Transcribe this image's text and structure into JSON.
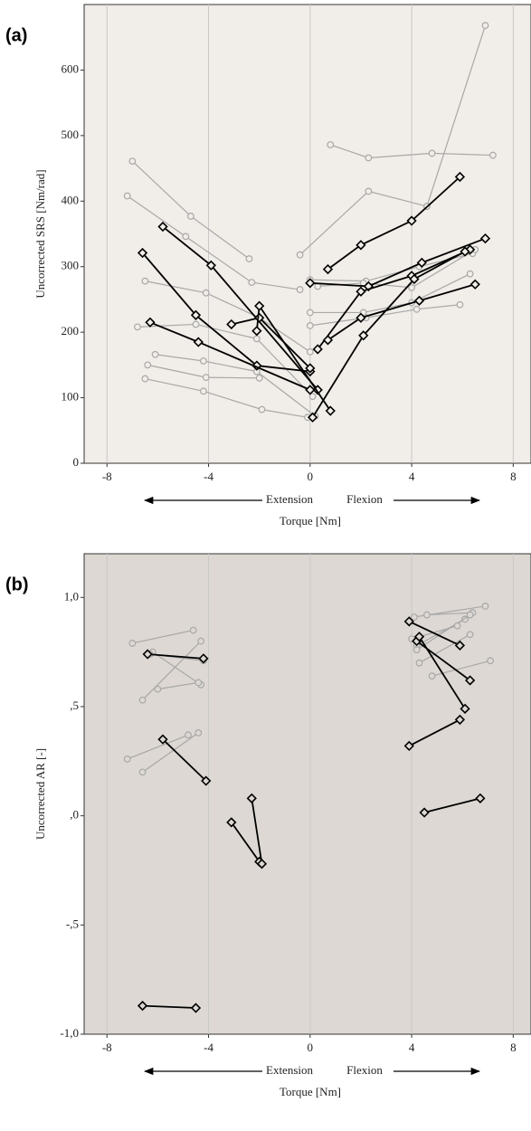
{
  "chart_data": [
    {
      "type": "line",
      "panel_label": "(a)",
      "xlabel": "Torque [Nm]",
      "ylabel": "Uncorrected SRS [Nm/rad]",
      "annotations": [
        "Extension",
        "Flexion"
      ],
      "background": "#f1ede8",
      "grid": "x",
      "xlim": [
        -8.9,
        8.7
      ],
      "xticks": [
        -8,
        -4,
        0,
        4,
        8
      ],
      "ylim": [
        0,
        700
      ],
      "yticks": [
        0,
        100,
        200,
        300,
        400,
        500,
        600
      ],
      "series": [
        {
          "color": "#a8a8a8",
          "marker": "circle",
          "x": [
            -7.0,
            -4.7,
            -2.4
          ],
          "values": [
            461,
            377,
            312
          ]
        },
        {
          "color": "#a8a8a8",
          "marker": "circle",
          "x": [
            -7.2,
            -4.9,
            -2.3,
            -0.4
          ],
          "values": [
            408,
            346,
            276,
            265
          ]
        },
        {
          "color": "#a8a8a8",
          "marker": "circle",
          "x": [
            -0.4,
            2.3,
            4.6
          ],
          "values": [
            318,
            415,
            392
          ]
        },
        {
          "color": "#a8a8a8",
          "marker": "circle",
          "x": [
            4.6,
            6.9
          ],
          "values": [
            392,
            668
          ]
        },
        {
          "color": "#a8a8a8",
          "marker": "circle",
          "x": [
            0.8,
            2.3,
            4.8,
            7.2
          ],
          "values": [
            486,
            466,
            473,
            470
          ]
        },
        {
          "color": "#a8a8a8",
          "marker": "circle",
          "x": [
            -6.5,
            -4.1,
            -2.0,
            0.0
          ],
          "values": [
            278,
            260,
            222,
            170
          ]
        },
        {
          "color": "#a8a8a8",
          "marker": "circle",
          "x": [
            -6.8,
            -4.5,
            -2.1,
            0.1
          ],
          "values": [
            208,
            212,
            190,
            102
          ]
        },
        {
          "color": "#a8a8a8",
          "marker": "circle",
          "x": [
            -6.1,
            -4.2,
            -2.1,
            0.2
          ],
          "values": [
            166,
            156,
            140,
            72
          ]
        },
        {
          "color": "#a8a8a8",
          "marker": "circle",
          "x": [
            -6.4,
            -4.1,
            -2.0
          ],
          "values": [
            150,
            131,
            130
          ]
        },
        {
          "color": "#a8a8a8",
          "marker": "circle",
          "x": [
            -6.5,
            -4.2,
            -1.9,
            -0.1
          ],
          "values": [
            129,
            110,
            82,
            70
          ]
        },
        {
          "color": "#a8a8a8",
          "marker": "circle",
          "x": [
            0.0,
            2.2,
            4.3,
            6.4
          ],
          "values": [
            280,
            278,
            300,
            320
          ]
        },
        {
          "color": "#a8a8a8",
          "marker": "circle",
          "x": [
            0.0,
            2.1,
            4.0,
            6.3
          ],
          "values": [
            230,
            230,
            245,
            289
          ]
        },
        {
          "color": "#a8a8a8",
          "marker": "circle",
          "x": [
            0.0,
            2.2,
            4.2,
            5.9
          ],
          "values": [
            210,
            222,
            235,
            242
          ]
        },
        {
          "color": "#a8a8a8",
          "marker": "circle",
          "x": [
            0.3,
            2.1,
            4.0,
            6.5
          ],
          "values": [
            270,
            275,
            268,
            326
          ]
        },
        {
          "color": "#000000",
          "marker": "diamond",
          "x": [
            -5.8,
            -3.9,
            0.3
          ],
          "values": [
            361,
            302,
            112
          ]
        },
        {
          "color": "#000000",
          "marker": "diamond",
          "x": [
            -6.6,
            -4.5,
            -2.1,
            0.0
          ],
          "values": [
            321,
            226,
            149,
            140
          ]
        },
        {
          "color": "#000000",
          "marker": "diamond",
          "x": [
            -6.3,
            -4.4,
            0.0
          ],
          "values": [
            215,
            185,
            112
          ]
        },
        {
          "color": "#000000",
          "marker": "diamond",
          "x": [
            -3.1,
            -2.0,
            0.0
          ],
          "values": [
            212,
            222,
            145
          ]
        },
        {
          "color": "#000000",
          "marker": "diamond",
          "x": [
            -2.1,
            -2.0,
            0.8
          ],
          "values": [
            202,
            240,
            80
          ]
        },
        {
          "color": "#000000",
          "marker": "diamond",
          "x": [
            0.7,
            2.0,
            4.0,
            5.9
          ],
          "values": [
            296,
            333,
            370,
            437
          ]
        },
        {
          "color": "#000000",
          "marker": "diamond",
          "x": [
            0.0,
            2.3,
            4.4,
            6.9
          ],
          "values": [
            275,
            270,
            306,
            343
          ]
        },
        {
          "color": "#000000",
          "marker": "diamond",
          "x": [
            0.3,
            2.0,
            4.0,
            6.3
          ],
          "values": [
            174,
            262,
            286,
            326
          ]
        },
        {
          "color": "#000000",
          "marker": "diamond",
          "x": [
            0.7,
            2.0,
            4.3,
            6.5
          ],
          "values": [
            188,
            222,
            248,
            273
          ]
        },
        {
          "color": "#000000",
          "marker": "diamond",
          "x": [
            0.1,
            2.1,
            4.1,
            6.1
          ],
          "values": [
            70,
            195,
            281,
            323
          ]
        }
      ]
    },
    {
      "type": "line",
      "panel_label": "(b)",
      "xlabel": "Torque [Nm]",
      "ylabel": "Uncorrected AR [-]",
      "annotations": [
        "Extension",
        "Flexion"
      ],
      "background": "#ddd8d3",
      "grid": "x",
      "xlim": [
        -8.9,
        8.7
      ],
      "xticks": [
        -8,
        -4,
        0,
        4,
        8
      ],
      "ylim": [
        -1.0,
        1.2
      ],
      "yticks": [
        {
          "value": 1.0,
          "label": "1,0"
        },
        {
          "value": 0.5,
          "label": ",5"
        },
        {
          "value": 0,
          "label": ",0"
        },
        {
          "value": -0.5,
          "label": "-,5"
        },
        {
          "value": -1.0,
          "label": "-1,0"
        }
      ],
      "series": [
        {
          "color": "#a8a8a8",
          "marker": "circle",
          "x": [
            -7.0,
            -4.6
          ],
          "values": [
            0.79,
            0.85
          ]
        },
        {
          "color": "#a8a8a8",
          "marker": "circle",
          "x": [
            -6.6,
            -4.3
          ],
          "values": [
            0.53,
            0.8
          ]
        },
        {
          "color": "#a8a8a8",
          "marker": "circle",
          "x": [
            -6.2,
            -4.3
          ],
          "values": [
            0.75,
            0.6
          ]
        },
        {
          "color": "#a8a8a8",
          "marker": "circle",
          "x": [
            -6.0,
            -4.4
          ],
          "values": [
            0.58,
            0.61
          ]
        },
        {
          "color": "#a8a8a8",
          "marker": "circle",
          "x": [
            -7.2,
            -4.8
          ],
          "values": [
            0.26,
            0.37
          ]
        },
        {
          "color": "#a8a8a8",
          "marker": "circle",
          "x": [
            -6.6,
            -4.4
          ],
          "values": [
            0.2,
            0.38
          ]
        },
        {
          "color": "#a8a8a8",
          "marker": "circle",
          "x": [
            -6.3,
            -4.2
          ],
          "values": [
            0.74,
            0.71
          ]
        },
        {
          "color": "#a8a8a8",
          "marker": "circle",
          "x": [
            4.1,
            6.9
          ],
          "values": [
            0.91,
            0.96
          ]
        },
        {
          "color": "#a8a8a8",
          "marker": "circle",
          "x": [
            4.6,
            6.4
          ],
          "values": [
            0.92,
            0.93
          ]
        },
        {
          "color": "#a8a8a8",
          "marker": "circle",
          "x": [
            4.2,
            6.1
          ],
          "values": [
            0.78,
            0.9
          ]
        },
        {
          "color": "#a8a8a8",
          "marker": "circle",
          "x": [
            4.2,
            6.3
          ],
          "values": [
            0.76,
            0.92
          ]
        },
        {
          "color": "#a8a8a8",
          "marker": "circle",
          "x": [
            4.3,
            6.3
          ],
          "values": [
            0.7,
            0.83
          ]
        },
        {
          "color": "#a8a8a8",
          "marker": "circle",
          "x": [
            4.8,
            7.1
          ],
          "values": [
            0.64,
            0.71
          ]
        },
        {
          "color": "#a8a8a8",
          "marker": "circle",
          "x": [
            4.0,
            5.8
          ],
          "values": [
            0.81,
            0.87
          ]
        },
        {
          "color": "#000000",
          "marker": "diamond",
          "x": [
            -6.4,
            -4.2
          ],
          "values": [
            0.74,
            0.72
          ]
        },
        {
          "color": "#000000",
          "marker": "diamond",
          "x": [
            -5.8,
            -4.1
          ],
          "values": [
            0.35,
            0.16
          ]
        },
        {
          "color": "#000000",
          "marker": "diamond",
          "x": [
            -3.1,
            -2.0
          ],
          "values": [
            -0.03,
            -0.21
          ]
        },
        {
          "color": "#000000",
          "marker": "diamond",
          "x": [
            -2.3,
            -1.9
          ],
          "values": [
            0.08,
            -0.22
          ]
        },
        {
          "color": "#000000",
          "marker": "diamond",
          "x": [
            -6.6,
            -4.5
          ],
          "values": [
            -0.87,
            -0.88
          ]
        },
        {
          "color": "#000000",
          "marker": "diamond",
          "x": [
            3.9,
            5.9
          ],
          "values": [
            0.89,
            0.78
          ]
        },
        {
          "color": "#000000",
          "marker": "diamond",
          "x": [
            4.2,
            6.3
          ],
          "values": [
            0.8,
            0.62
          ]
        },
        {
          "color": "#000000",
          "marker": "diamond",
          "x": [
            4.3,
            6.1
          ],
          "values": [
            0.82,
            0.49
          ]
        },
        {
          "color": "#000000",
          "marker": "diamond",
          "x": [
            3.9,
            5.9
          ],
          "values": [
            0.32,
            0.44
          ]
        },
        {
          "color": "#000000",
          "marker": "diamond",
          "x": [
            4.5,
            6.7
          ],
          "values": [
            0.015,
            0.08
          ]
        }
      ]
    }
  ]
}
